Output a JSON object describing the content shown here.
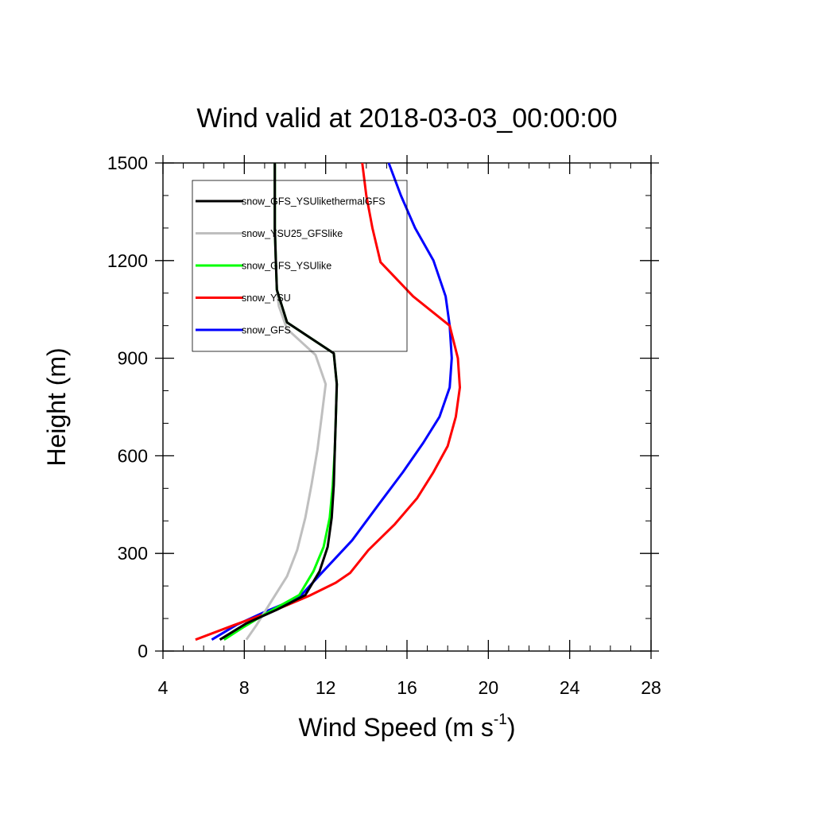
{
  "chart_data": {
    "type": "line",
    "title": "Wind valid at 2018-03-03_00:00:00",
    "xlabel": "Wind Speed (m s",
    "xlabel_sup": "-1",
    "xlabel_close": ")",
    "ylabel": "Height (m)",
    "xlim": [
      4,
      28
    ],
    "ylim": [
      0,
      1500
    ],
    "xticks": [
      "4",
      "8",
      "12",
      "16",
      "20",
      "24",
      "28"
    ],
    "yticks": [
      "0",
      "300",
      "600",
      "900",
      "1200",
      "1500"
    ],
    "grid": false,
    "legend_placement": "top-left",
    "series": [
      {
        "name": "snow_GFS_YSUlikethermalGFS",
        "color": "#000000",
        "points": [
          [
            6.8,
            35
          ],
          [
            8.1,
            85
          ],
          [
            9.6,
            127
          ],
          [
            11.0,
            172
          ],
          [
            11.7,
            245
          ],
          [
            12.1,
            320
          ],
          [
            12.3,
            410
          ],
          [
            12.4,
            510
          ],
          [
            12.45,
            620
          ],
          [
            12.5,
            720
          ],
          [
            12.55,
            820
          ],
          [
            12.4,
            915
          ],
          [
            10.1,
            1010
          ],
          [
            9.6,
            1110
          ],
          [
            9.55,
            1200
          ],
          [
            9.5,
            1300
          ],
          [
            9.5,
            1400
          ],
          [
            9.5,
            1500
          ]
        ]
      },
      {
        "name": "snow_YSU25_GFSlike",
        "color": "#bfbfbf",
        "points": [
          [
            8.1,
            35
          ],
          [
            8.6,
            80
          ],
          [
            9.0,
            120
          ],
          [
            9.3,
            150
          ],
          [
            9.6,
            180
          ],
          [
            10.1,
            230
          ],
          [
            10.6,
            310
          ],
          [
            11.0,
            410
          ],
          [
            11.3,
            510
          ],
          [
            11.6,
            620
          ],
          [
            11.8,
            720
          ],
          [
            12.0,
            820
          ],
          [
            11.5,
            910
          ],
          [
            10.1,
            990
          ],
          [
            9.7,
            1060
          ],
          [
            9.6,
            1110
          ],
          [
            9.55,
            1200
          ],
          [
            9.5,
            1300
          ],
          [
            9.5,
            1400
          ],
          [
            9.5,
            1500
          ]
        ]
      },
      {
        "name": "snow_GFS_YSUlike",
        "color": "#00ff00",
        "points": [
          [
            7.0,
            35
          ],
          [
            8.0,
            75
          ],
          [
            9.2,
            120
          ],
          [
            10.7,
            172
          ],
          [
            11.4,
            245
          ],
          [
            11.9,
            320
          ],
          [
            12.2,
            410
          ],
          [
            12.35,
            510
          ],
          [
            12.45,
            620
          ],
          [
            12.5,
            720
          ],
          [
            12.55,
            820
          ],
          [
            12.4,
            915
          ],
          [
            10.1,
            1010
          ],
          [
            9.6,
            1110
          ],
          [
            9.55,
            1200
          ],
          [
            9.5,
            1300
          ],
          [
            9.5,
            1400
          ],
          [
            9.5,
            1500
          ]
        ]
      },
      {
        "name": "snow_YSU",
        "color": "#ff0000",
        "points": [
          [
            5.6,
            35
          ],
          [
            7.5,
            80
          ],
          [
            9.5,
            125
          ],
          [
            11.2,
            170
          ],
          [
            12.5,
            210
          ],
          [
            13.2,
            240
          ],
          [
            14.1,
            310
          ],
          [
            15.4,
            390
          ],
          [
            16.5,
            470
          ],
          [
            17.3,
            550
          ],
          [
            18.0,
            630
          ],
          [
            18.4,
            720
          ],
          [
            18.6,
            810
          ],
          [
            18.5,
            900
          ],
          [
            18.1,
            1000
          ],
          [
            16.3,
            1090
          ],
          [
            14.7,
            1195
          ],
          [
            14.3,
            1300
          ],
          [
            14.0,
            1400
          ],
          [
            13.8,
            1500
          ]
        ]
      },
      {
        "name": "snow_GFS",
        "color": "#0000ff",
        "points": [
          [
            6.4,
            35
          ],
          [
            7.6,
            80
          ],
          [
            9.0,
            120
          ],
          [
            10.7,
            165
          ],
          [
            11.8,
            240
          ],
          [
            13.3,
            340
          ],
          [
            14.6,
            450
          ],
          [
            15.8,
            550
          ],
          [
            16.8,
            640
          ],
          [
            17.6,
            720
          ],
          [
            18.1,
            810
          ],
          [
            18.2,
            900
          ],
          [
            18.1,
            1000
          ],
          [
            17.9,
            1090
          ],
          [
            17.3,
            1200
          ],
          [
            16.4,
            1300
          ],
          [
            15.7,
            1400
          ],
          [
            15.1,
            1500
          ]
        ]
      }
    ]
  }
}
